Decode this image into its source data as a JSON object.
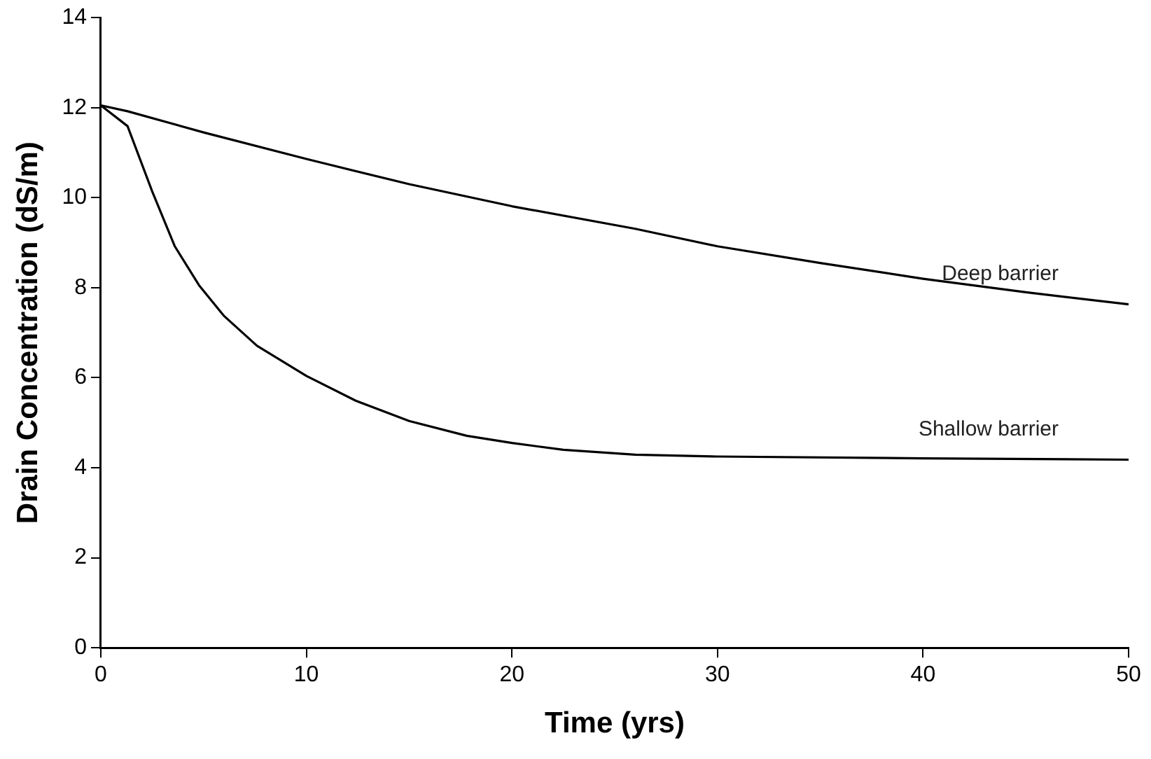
{
  "chart_data": {
    "type": "line",
    "xlabel": "Time (yrs)",
    "ylabel": "Drain Concentration (dS/m)",
    "xlim": [
      0,
      50
    ],
    "xticks": [
      0,
      10,
      20,
      30,
      40,
      50
    ],
    "ylim": [
      0,
      14
    ],
    "yticks": [
      0,
      2,
      4,
      6,
      8,
      10,
      12,
      14
    ],
    "grid": false,
    "legend": false,
    "marker": "none",
    "line_style": "solid",
    "series": [
      {
        "name": "Deep barrier",
        "color": "#000000",
        "x": [
          0,
          1.3,
          5,
          10,
          15,
          20,
          26,
          30,
          35,
          40,
          45,
          50
        ],
        "values": [
          12.05,
          11.92,
          11.45,
          10.86,
          10.3,
          9.81,
          9.31,
          8.92,
          8.55,
          8.2,
          7.9,
          7.63
        ]
      },
      {
        "name": "Shallow barrier",
        "color": "#000000",
        "x": [
          0,
          1.3,
          2.5,
          3.6,
          4.8,
          6,
          7.6,
          10,
          12.4,
          15,
          17.8,
          20,
          22.5,
          26,
          30,
          40,
          50
        ],
        "values": [
          12.05,
          11.59,
          10.14,
          8.92,
          8.04,
          7.37,
          6.71,
          6.04,
          5.49,
          5.04,
          4.71,
          4.55,
          4.4,
          4.29,
          4.25,
          4.21,
          4.18
        ]
      }
    ]
  }
}
